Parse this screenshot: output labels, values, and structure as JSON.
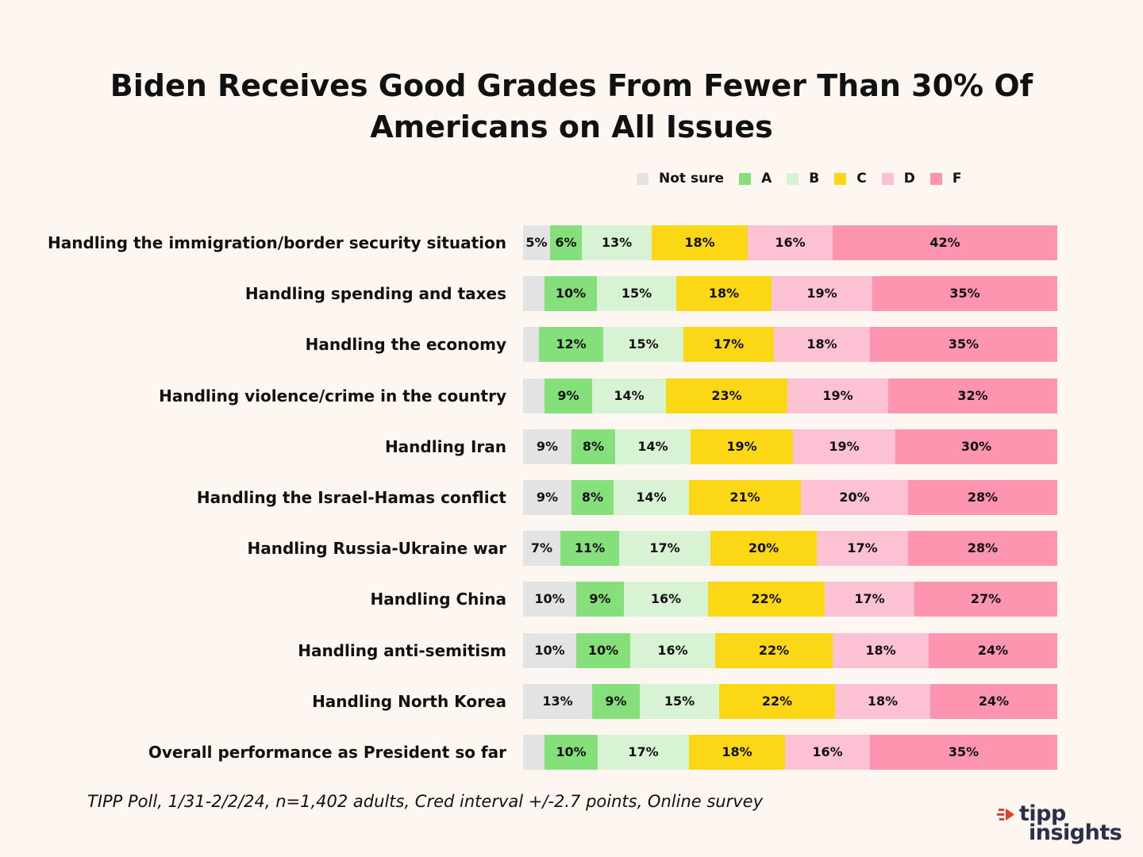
{
  "chart_data": {
    "type": "bar",
    "orientation": "horizontal",
    "stacked": true,
    "normalized": true,
    "title": "Biden Receives Good Grades From Fewer Than 30% Of Americans on All Issues",
    "title_lines": [
      "Biden Receives Good Grades From Fewer Than 30% Of",
      "Americans on All Issues"
    ],
    "xlabel": "",
    "ylabel": "",
    "legend_position": "top-right",
    "categories": [
      "Handling the immigration/border security situation",
      "Handling spending and taxes",
      "Handling the economy",
      "Handling violence/crime in the country",
      "Handling Iran",
      "Handling the Israel-Hamas conflict",
      "Handling Russia-Ukraine war",
      "Handling China",
      "Handling anti-semitism",
      "Handling North Korea",
      "Overall performance as President so far"
    ],
    "series": [
      {
        "name": "Not sure",
        "color": "#e3e3e3",
        "values": [
          5,
          4,
          3,
          4,
          9,
          9,
          7,
          10,
          10,
          13,
          4
        ],
        "labels": [
          "5%",
          "",
          "",
          "",
          "9%",
          "9%",
          "7%",
          "10%",
          "10%",
          "13%",
          ""
        ]
      },
      {
        "name": "A",
        "color": "#85df7a",
        "values": [
          6,
          10,
          12,
          9,
          8,
          8,
          11,
          9,
          10,
          9,
          10
        ],
        "labels": [
          "6%",
          "10%",
          "12%",
          "9%",
          "8%",
          "8%",
          "11%",
          "9%",
          "10%",
          "9%",
          "10%"
        ]
      },
      {
        "name": "B",
        "color": "#d8f3d3",
        "values": [
          13,
          15,
          15,
          14,
          14,
          14,
          17,
          16,
          16,
          15,
          17
        ],
        "labels": [
          "13%",
          "15%",
          "15%",
          "14%",
          "14%",
          "14%",
          "17%",
          "16%",
          "16%",
          "15%",
          "17%"
        ]
      },
      {
        "name": "C",
        "color": "#fcd715",
        "values": [
          18,
          18,
          17,
          23,
          19,
          21,
          20,
          22,
          22,
          22,
          18
        ],
        "labels": [
          "18%",
          "18%",
          "17%",
          "23%",
          "19%",
          "21%",
          "20%",
          "22%",
          "22%",
          "22%",
          "18%"
        ]
      },
      {
        "name": "D",
        "color": "#fcc2d3",
        "values": [
          16,
          19,
          18,
          19,
          19,
          20,
          17,
          17,
          18,
          18,
          16
        ],
        "labels": [
          "16%",
          "19%",
          "18%",
          "19%",
          "19%",
          "20%",
          "17%",
          "17%",
          "18%",
          "18%",
          "16%"
        ]
      },
      {
        "name": "F",
        "color": "#fd95b1",
        "values": [
          42,
          35,
          35,
          32,
          30,
          28,
          28,
          27,
          24,
          24,
          35
        ],
        "labels": [
          "42%",
          "35%",
          "35%",
          "32%",
          "30%",
          "28%",
          "28%",
          "27%",
          "24%",
          "24%",
          "35%"
        ]
      }
    ]
  },
  "footnote": "TIPP Poll, 1/31-2/2/24, n=1,402 adults, Cred interval +/-2.7 points, Online survey",
  "brand": {
    "line1": "tipp",
    "line2": "insights",
    "accent_color": "#e8392b",
    "text_color": "#2b2f4a"
  }
}
